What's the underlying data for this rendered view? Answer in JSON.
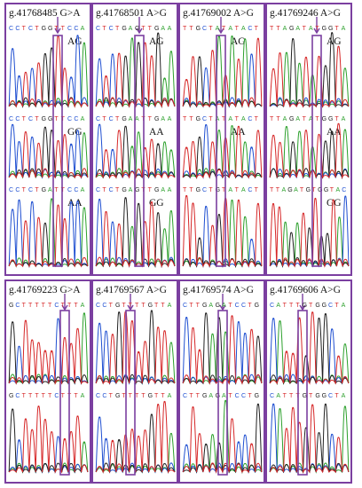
{
  "colors": {
    "border": "#7b3fa0",
    "A": "#2ca02c",
    "C": "#1f4fd1",
    "G": "#222222",
    "T": "#d62728"
  },
  "panels": [
    {
      "title": "g.41768485 G>A",
      "rows": [
        {
          "seq": "CCTCTGGTTCCA",
          "genotype": "AG"
        },
        {
          "seq": "CCTCTGGTTCCA",
          "genotype": "GG"
        },
        {
          "seq": "CCTCTGATTCCA",
          "genotype": "AA"
        }
      ]
    },
    {
      "title": "g.41768501 A>G",
      "rows": [
        {
          "seq": "CTCTGAGTTGAA",
          "genotype": "AG"
        },
        {
          "seq": "CTCTGAATTGAA",
          "genotype": "AA"
        },
        {
          "seq": "CTCTGAGTTGAA",
          "genotype": "GG"
        }
      ]
    },
    {
      "title": "g.41769002 A>G",
      "rows": [
        {
          "seq": "TTGCTATATACT",
          "genotype": "AG"
        },
        {
          "seq": "TTGCTATATACT",
          "genotype": "AA"
        },
        {
          "seq": "TTGCTGTATACT",
          "genotype": ""
        }
      ]
    },
    {
      "title": "g.41769246 A>G",
      "rows": [
        {
          "seq": "TTAGATATGGTA",
          "genotype": "AG"
        },
        {
          "seq": "TTAGATATGGTA",
          "genotype": "AA"
        },
        {
          "seq": "TTAGATGTGGTAC",
          "genotype": "GG"
        }
      ]
    },
    {
      "title": "g.41769223 G>A",
      "rows": [
        {
          "seq": "GCTTTTTCTTTA",
          "genotype": ""
        },
        {
          "seq": "GCTTTTTCTTTA",
          "genotype": ""
        }
      ]
    },
    {
      "title": "g.41769567 A>G",
      "rows": [
        {
          "seq": "CCTGTTTTGTTA",
          "genotype": ""
        },
        {
          "seq": "CCTGTTTTGTTA",
          "genotype": ""
        }
      ]
    },
    {
      "title": "g.41769574 A>G",
      "rows": [
        {
          "seq": "CTTGAGATCCTG",
          "genotype": ""
        },
        {
          "seq": "CTTGAGATCCTG",
          "genotype": ""
        }
      ]
    },
    {
      "title": "g.41769606 A>G",
      "rows": [
        {
          "seq": "CATTTGTGGCTA",
          "genotype": ""
        },
        {
          "seq": "CATTTGTGGCTA",
          "genotype": ""
        }
      ]
    }
  ]
}
